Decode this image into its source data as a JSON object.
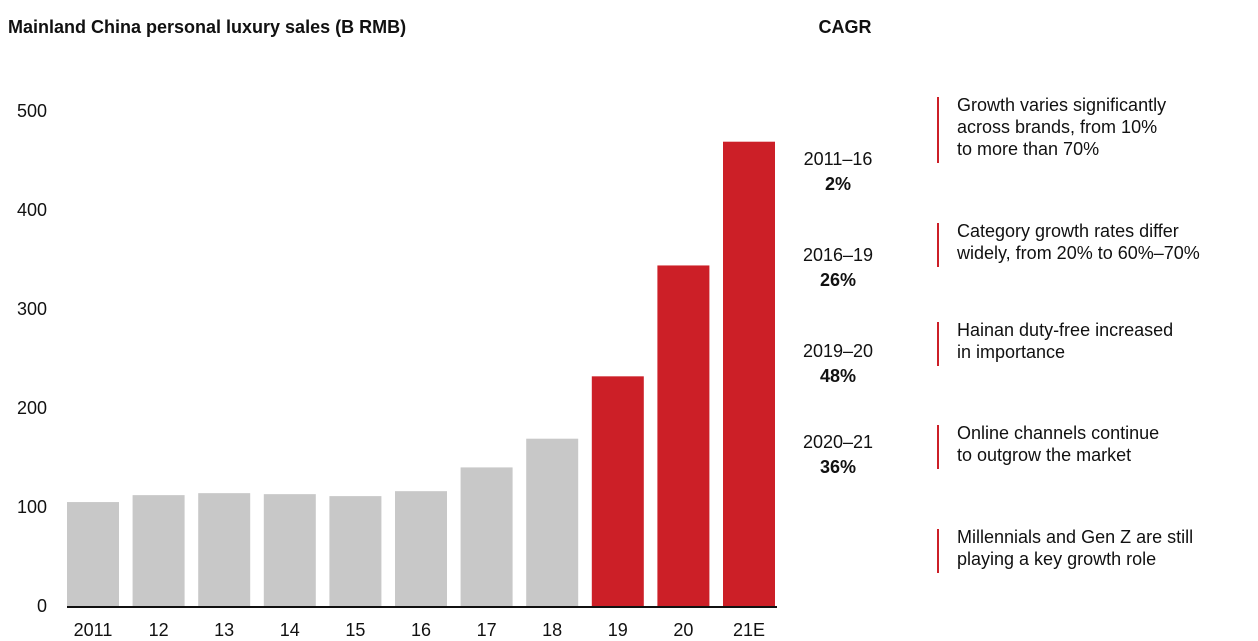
{
  "chart_data": {
    "type": "bar",
    "title": "Mainland China personal luxury sales (B RMB)",
    "categories": [
      "2011",
      "12",
      "13",
      "14",
      "15",
      "16",
      "17",
      "18",
      "19",
      "20",
      "21E"
    ],
    "values": [
      106,
      113,
      115,
      114,
      112,
      117,
      141,
      170,
      233,
      345,
      470
    ],
    "colors": [
      "#c8c8c8",
      "#c8c8c8",
      "#c8c8c8",
      "#c8c8c8",
      "#c8c8c8",
      "#c8c8c8",
      "#c8c8c8",
      "#c8c8c8",
      "#cc1f27",
      "#cc1f27",
      "#cc1f27"
    ],
    "ylim": [
      0,
      500
    ],
    "yticks": [
      0,
      100,
      200,
      300,
      400,
      500
    ],
    "grid": false
  },
  "cagr": {
    "title": "CAGR",
    "items": [
      {
        "period": "2011–16",
        "rate": "2%"
      },
      {
        "period": "2016–19",
        "rate": "26%"
      },
      {
        "period": "2019–20",
        "rate": "48%"
      },
      {
        "period": "2020–21",
        "rate": "36%"
      }
    ]
  },
  "notes": [
    [
      "Growth varies significantly",
      "across brands, from 10%",
      "to more than 70%"
    ],
    [
      "Category growth rates differ",
      "widely, from 20% to 60%–70%"
    ],
    [
      "Hainan duty-free increased",
      "in importance"
    ],
    [
      "Online channels continue",
      "to outgrow the market"
    ],
    [
      "Millennials and Gen Z are still",
      "playing a key growth role"
    ]
  ]
}
